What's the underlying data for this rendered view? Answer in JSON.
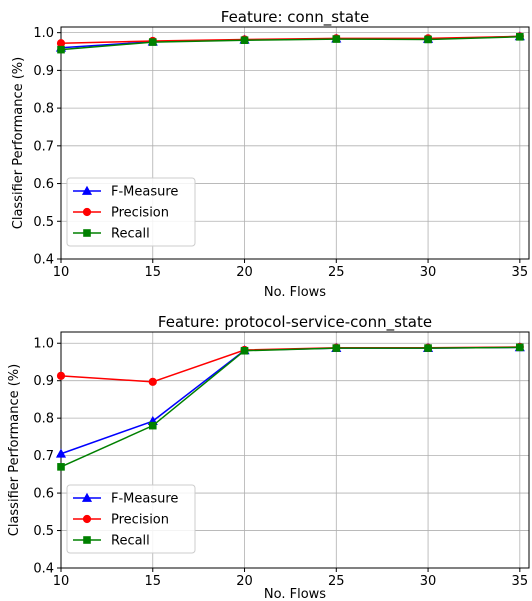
{
  "chart_data": [
    {
      "type": "line",
      "title": "Feature: conn_state",
      "xlabel": "No. Flows",
      "ylabel": "Classifier Performance (%)",
      "x": [
        10,
        15,
        20,
        25,
        30,
        35
      ],
      "xlim": [
        10,
        35.5
      ],
      "ylim": [
        0.4,
        1.015
      ],
      "xticks": [
        "10",
        "15",
        "20",
        "25",
        "30",
        "35"
      ],
      "yticks": [
        "0.4",
        "0.5",
        "0.6",
        "0.7",
        "0.8",
        "0.9",
        "1.0"
      ],
      "grid": true,
      "legend_position": "lower-left",
      "series": [
        {
          "name": "F-Measure",
          "color": "#0000ff",
          "marker": "triangle",
          "values": [
            0.96,
            0.976,
            0.981,
            0.984,
            0.983,
            0.99
          ]
        },
        {
          "name": "Precision",
          "color": "#ff0000",
          "marker": "circle",
          "values": [
            0.972,
            0.978,
            0.982,
            0.985,
            0.985,
            0.99
          ]
        },
        {
          "name": "Recall",
          "color": "#008000",
          "marker": "square",
          "values": [
            0.955,
            0.975,
            0.98,
            0.983,
            0.982,
            0.989
          ]
        }
      ]
    },
    {
      "type": "line",
      "title": "Feature: protocol-service-conn_state",
      "xlabel": "No. Flows",
      "ylabel": "Classifier Performance (%)",
      "x": [
        10,
        15,
        20,
        25,
        30,
        35
      ],
      "xlim": [
        10,
        35.5
      ],
      "ylim": [
        0.4,
        1.03
      ],
      "xticks": [
        "10",
        "15",
        "20",
        "25",
        "30",
        "35"
      ],
      "yticks": [
        "0.4",
        "0.5",
        "0.6",
        "0.7",
        "0.8",
        "0.9",
        "1.0"
      ],
      "grid": true,
      "legend_position": "lower-left",
      "series": [
        {
          "name": "F-Measure",
          "color": "#0000ff",
          "marker": "triangle",
          "values": [
            0.705,
            0.792,
            0.981,
            0.987,
            0.987,
            0.989
          ]
        },
        {
          "name": "Precision",
          "color": "#ff0000",
          "marker": "circle",
          "values": [
            0.913,
            0.897,
            0.982,
            0.988,
            0.988,
            0.99
          ]
        },
        {
          "name": "Recall",
          "color": "#008000",
          "marker": "square",
          "values": [
            0.67,
            0.78,
            0.98,
            0.987,
            0.987,
            0.989
          ]
        }
      ]
    }
  ]
}
